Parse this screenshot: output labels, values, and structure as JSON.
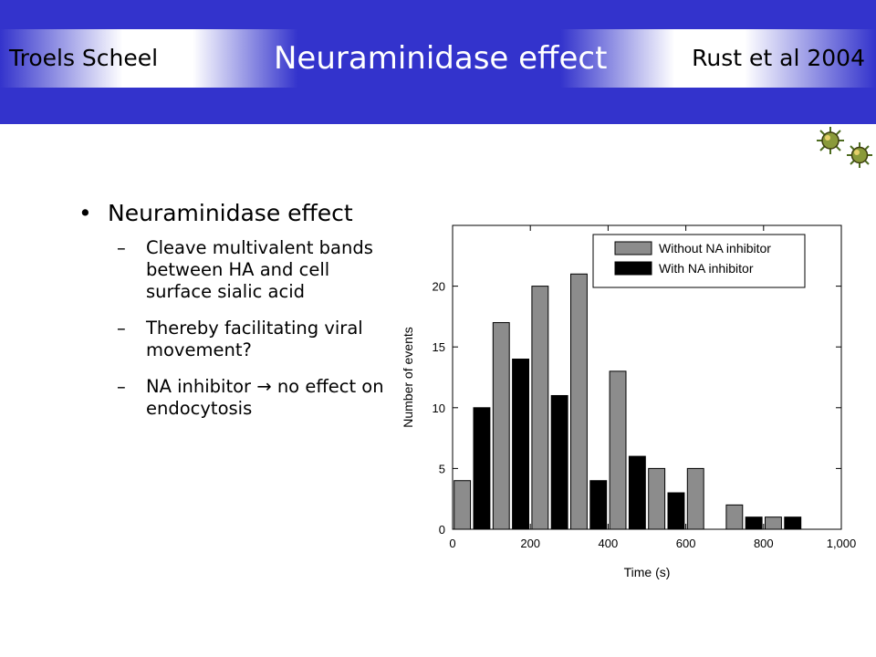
{
  "header": {
    "author": "Troels Scheel",
    "title": "Neuraminidase effect",
    "citation": "Rust et al 2004"
  },
  "decor": {
    "icon": "virus-particle-icon"
  },
  "bullets": {
    "main": "Neuraminidase effect",
    "subs": [
      "Cleave multivalent bands between HA and cell surface sialic acid",
      "Thereby facilitating viral movement?"
    ],
    "inhibitor_before": "NA inhibitor",
    "inhibitor_arrow": "→",
    "inhibitor_after": "no effect on endocytosis"
  },
  "colors": {
    "header_blue": "#3333cc",
    "without_bar": "#8c8c8c",
    "with_bar": "#000000"
  },
  "chart_data": {
    "type": "bar",
    "xlabel": "Time (s)",
    "ylabel": "Number of events",
    "xlim": [
      0,
      1000
    ],
    "ylim": [
      0,
      25
    ],
    "bin_width": 100,
    "bin_starts": [
      0,
      100,
      200,
      300,
      400,
      500,
      600,
      700,
      800
    ],
    "x_ticks": [
      0,
      200,
      400,
      600,
      800,
      1000
    ],
    "x_tick_labels": [
      "0",
      "200",
      "400",
      "600",
      "800",
      "1,000"
    ],
    "y_ticks": [
      0,
      5,
      10,
      15,
      20
    ],
    "y_tick_labels": [
      "0",
      "5",
      "10",
      "15",
      "20"
    ],
    "legend_position": "top-right",
    "series": [
      {
        "name": "Without NA inhibitor",
        "color": "#8c8c8c",
        "values": [
          4,
          17,
          20,
          21,
          13,
          5,
          5,
          2,
          1
        ]
      },
      {
        "name": "With NA inhibitor",
        "color": "#000000",
        "values": [
          10,
          14,
          11,
          4,
          6,
          3,
          0,
          1,
          1
        ]
      }
    ]
  }
}
